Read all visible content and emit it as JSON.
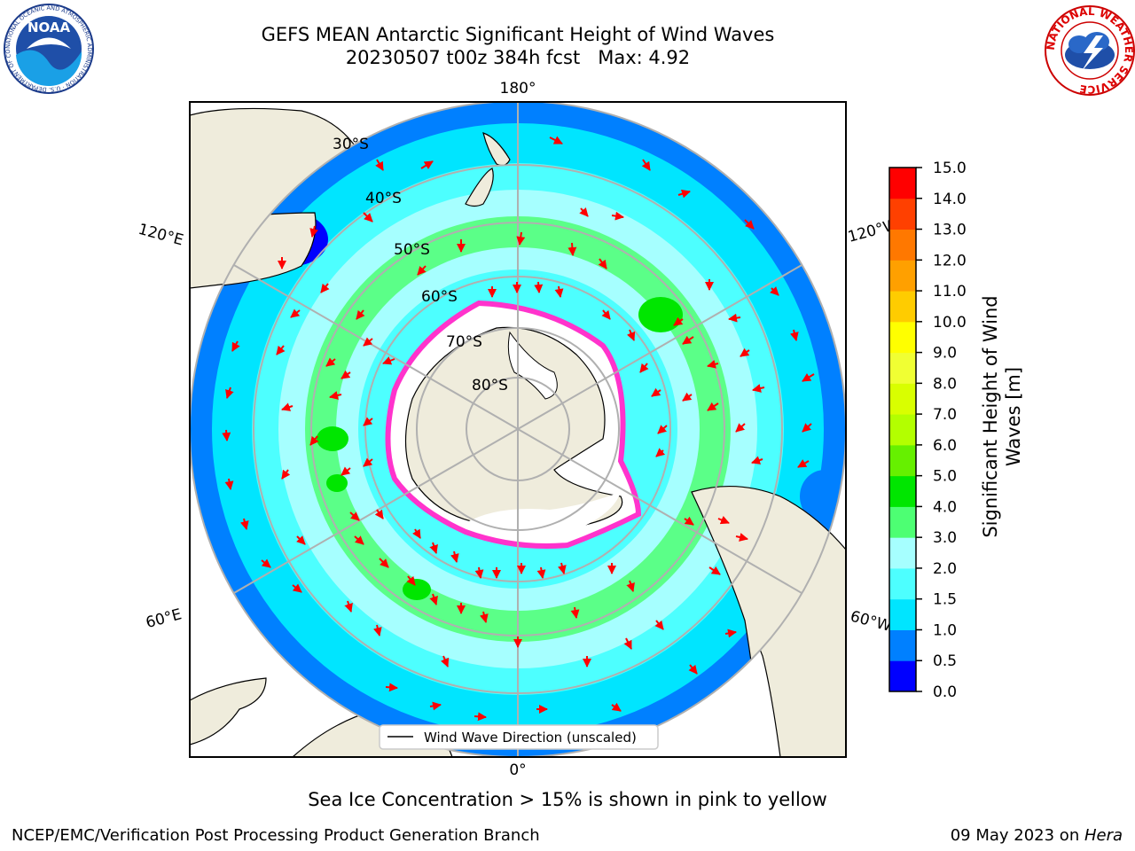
{
  "header": {
    "title_line1": "GEFS MEAN Antarctic Significant Height of Wind Waves",
    "title_line2": "20230507 t00z 384h fcst   Max: 4.92"
  },
  "logos": {
    "left": {
      "name": "noaa-logo",
      "text": "NOAA",
      "ring_text": "NATIONAL OCEANIC AND ATMOSPHERIC ADMINISTRATION · U.S. DEPARTMENT OF COMMERCE"
    },
    "right": {
      "name": "nws-logo",
      "ring_text": "NATIONAL WEATHER SERVICE"
    }
  },
  "map": {
    "meridian_labels": {
      "top": "180°",
      "bottom": "0°",
      "left_upper": "120°E",
      "left_lower": "60°E",
      "right_upper": "120°W",
      "right_lower": "60°W"
    },
    "parallel_labels": [
      "30°S",
      "40°S",
      "50°S",
      "60°S",
      "70°S",
      "80°S"
    ],
    "legend_label": "Wind Wave Direction (unscaled)",
    "colors": {
      "land": "#efecdc",
      "ice_edge": "#ff33cc",
      "arrow": "#ff0000"
    }
  },
  "colorbar": {
    "title_line1": "Significant Height of Wind",
    "title_line2": "Waves [m]",
    "ticks": [
      "0.0",
      "0.5",
      "1.0",
      "1.5",
      "2.0",
      "3.0",
      "4.0",
      "5.0",
      "6.0",
      "7.0",
      "8.0",
      "9.0",
      "10.0",
      "11.0",
      "12.0",
      "13.0",
      "14.0",
      "15.0"
    ],
    "bin_colors": [
      "#0000ff",
      "#0080ff",
      "#00e5ff",
      "#4dffff",
      "#a6ffff",
      "#4dff73",
      "#00e600",
      "#66f000",
      "#b3ff00",
      "#d9ff00",
      "#f0ff33",
      "#ffff00",
      "#ffcc00",
      "#ffa000",
      "#ff7800",
      "#ff4000",
      "#ff0000"
    ]
  },
  "chart_data": {
    "type": "heatmap",
    "title": "GEFS MEAN Antarctic Significant Height of Wind Waves",
    "subtitle": "20230507 t00z 384h fcst   Max: 4.92",
    "colorbar_label": "Significant Height of Wind Waves [m]",
    "colorbar_range": [
      0,
      15
    ],
    "max_value": 4.92
  },
  "footer": {
    "caption": "Sea Ice Concentration > 15% is shown in pink to yellow",
    "left": "NCEP/EMC/Verification Post Processing Product Generation Branch",
    "right_date": "09 May 2023 on ",
    "right_machine": "Hera"
  }
}
